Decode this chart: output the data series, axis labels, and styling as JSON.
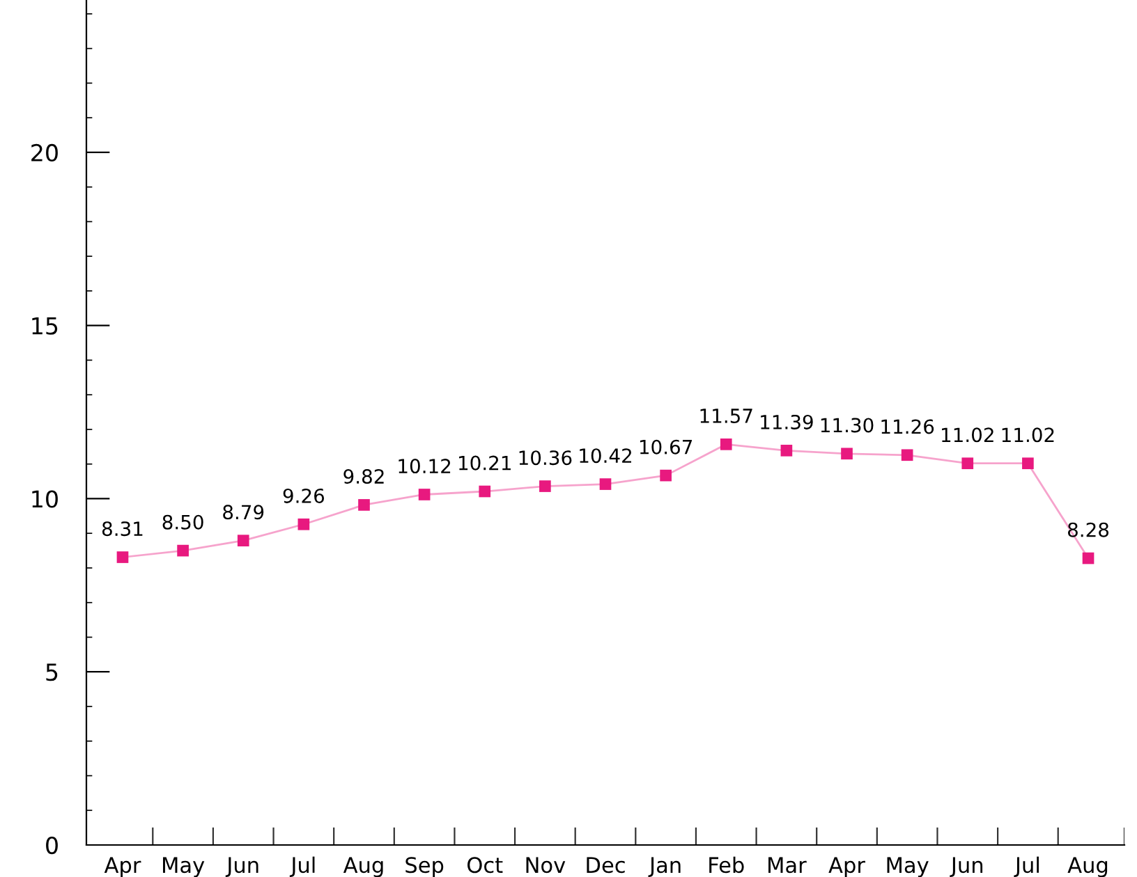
{
  "chart_data": {
    "type": "line",
    "categories": [
      "Apr",
      "May",
      "Jun",
      "Jul",
      "Aug",
      "Sep",
      "Oct",
      "Nov",
      "Dec",
      "Jan",
      "Feb",
      "Mar",
      "Apr",
      "May",
      "Jun",
      "Jul",
      "Aug"
    ],
    "series": [
      {
        "color": "#e8197f",
        "values": [
          8.31,
          8.5,
          8.79,
          9.26,
          9.82,
          10.12,
          10.21,
          10.36,
          10.42,
          10.67,
          11.57,
          11.39,
          11.3,
          11.26,
          11.02,
          11.02,
          8.28
        ],
        "value_labels": [
          "8.31",
          "8.50",
          "8.79",
          "9.26",
          "9.82",
          "10.12",
          "10.21",
          "10.36",
          "10.42",
          "10.67",
          "11.57",
          "11.39",
          "11.30",
          "11.26",
          "11.02",
          "11.02",
          "8.28"
        ]
      }
    ],
    "ylim": [
      0,
      24.4
    ],
    "yticks": [
      0,
      5,
      10,
      15,
      20
    ],
    "marker": "square",
    "line_style": "solid"
  }
}
